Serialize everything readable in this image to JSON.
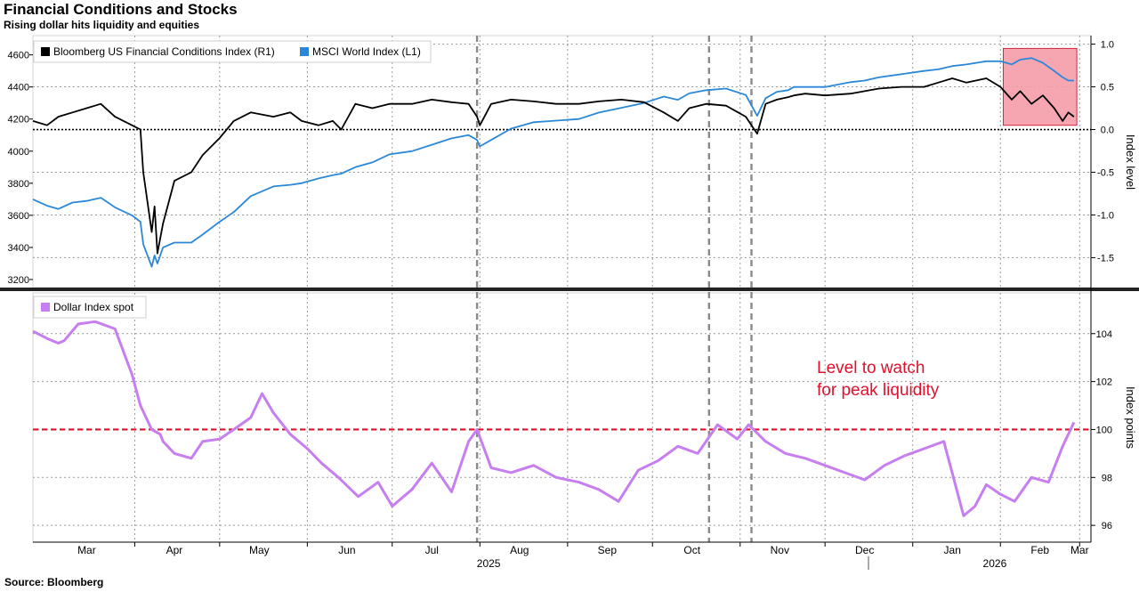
{
  "header": {
    "title": "Financial Conditions and Stocks",
    "subtitle": "Rising dollar hits liquidity and equities"
  },
  "footer": {
    "source": "Source: Bloomberg"
  },
  "colors": {
    "fci": "#000000",
    "msci": "#2b88d8",
    "dxy": "#c77ef0",
    "level": "#e0112b",
    "box_fill": "#f49ca8",
    "box_stroke": "#d0263c",
    "grid": "#9a9a9a",
    "vline": "#8a8a8a"
  },
  "x_axis": {
    "months": [
      "Mar",
      "Apr",
      "May",
      "Jun",
      "Jul",
      "Aug",
      "Sep",
      "Oct",
      "Nov",
      "Dec",
      "Jan",
      "Feb",
      "Mar"
    ],
    "years": [
      "2025",
      "2026"
    ]
  },
  "chart_data": [
    {
      "type": "line",
      "panel": "top",
      "legend_position": "top-left",
      "left_axis": {
        "range": [
          3150,
          4720
        ],
        "ticks": [
          3200,
          3400,
          3600,
          3800,
          4000,
          4200,
          4400,
          4600
        ]
      },
      "right_axis": {
        "label": "Index level",
        "range": [
          -1.85,
          1.1
        ],
        "ticks": [
          "1.0",
          "0.5",
          "0.0",
          "-0.5",
          "-1.0",
          "-1.5"
        ],
        "tick_values": [
          1.0,
          0.5,
          0.0,
          -0.5,
          -1.0,
          -1.5
        ]
      },
      "zero_line": 0.0,
      "grid": true,
      "series": [
        {
          "name": "Bloomberg US Financial Conditions Index (R1)",
          "axis": "right",
          "x": [
            "2025-02-24",
            "2025-03-01",
            "2025-03-05",
            "2025-03-10",
            "2025-03-15",
            "2025-03-20",
            "2025-03-25",
            "2025-03-31",
            "2025-04-03",
            "2025-04-04",
            "2025-04-07",
            "2025-04-08",
            "2025-04-09",
            "2025-04-11",
            "2025-04-15",
            "2025-04-21",
            "2025-04-25",
            "2025-05-01",
            "2025-05-06",
            "2025-05-12",
            "2025-05-20",
            "2025-05-26",
            "2025-05-30",
            "2025-06-05",
            "2025-06-10",
            "2025-06-13",
            "2025-06-18",
            "2025-06-24",
            "2025-06-30",
            "2025-07-08",
            "2025-07-15",
            "2025-07-22",
            "2025-07-28",
            "2025-07-31",
            "2025-08-01",
            "2025-08-05",
            "2025-08-12",
            "2025-08-20",
            "2025-08-28",
            "2025-09-05",
            "2025-09-12",
            "2025-09-20",
            "2025-09-28",
            "2025-10-05",
            "2025-10-10",
            "2025-10-14",
            "2025-10-20",
            "2025-10-27",
            "2025-11-03",
            "2025-11-07",
            "2025-11-10",
            "2025-11-14",
            "2025-11-18",
            "2025-11-20",
            "2025-11-24",
            "2025-12-01",
            "2025-12-10",
            "2025-12-15",
            "2025-12-20",
            "2025-12-28",
            "2026-01-05",
            "2026-01-10",
            "2026-01-15",
            "2026-01-20",
            "2026-01-27",
            "2026-02-01",
            "2026-02-05",
            "2026-02-08",
            "2026-02-12",
            "2026-02-16",
            "2026-02-20",
            "2026-02-23",
            "2026-02-25",
            "2026-02-27"
          ],
          "values": [
            0.1,
            0.05,
            0.15,
            0.2,
            0.25,
            0.3,
            0.15,
            0.05,
            0.0,
            -0.5,
            -1.2,
            -0.9,
            -1.45,
            -1.1,
            -0.6,
            -0.5,
            -0.3,
            -0.1,
            0.1,
            0.2,
            0.15,
            0.2,
            0.1,
            0.05,
            0.1,
            0.0,
            0.3,
            0.25,
            0.3,
            0.3,
            0.35,
            0.32,
            0.3,
            0.15,
            0.05,
            0.3,
            0.35,
            0.33,
            0.3,
            0.3,
            0.33,
            0.35,
            0.32,
            0.2,
            0.1,
            0.25,
            0.3,
            0.28,
            0.15,
            -0.05,
            0.3,
            0.35,
            0.38,
            0.4,
            0.42,
            0.4,
            0.42,
            0.45,
            0.48,
            0.5,
            0.5,
            0.55,
            0.6,
            0.55,
            0.6,
            0.5,
            0.35,
            0.45,
            0.3,
            0.4,
            0.25,
            0.1,
            0.2,
            0.15
          ]
        },
        {
          "name": "MSCI World Index (L1)",
          "axis": "left",
          "x": [
            "2025-02-24",
            "2025-03-01",
            "2025-03-05",
            "2025-03-10",
            "2025-03-15",
            "2025-03-20",
            "2025-03-25",
            "2025-03-31",
            "2025-04-03",
            "2025-04-04",
            "2025-04-07",
            "2025-04-08",
            "2025-04-09",
            "2025-04-11",
            "2025-04-15",
            "2025-04-21",
            "2025-04-25",
            "2025-05-01",
            "2025-05-06",
            "2025-05-12",
            "2025-05-20",
            "2025-05-26",
            "2025-05-30",
            "2025-06-05",
            "2025-06-10",
            "2025-06-13",
            "2025-06-18",
            "2025-06-24",
            "2025-06-30",
            "2025-07-08",
            "2025-07-15",
            "2025-07-22",
            "2025-07-28",
            "2025-07-31",
            "2025-08-01",
            "2025-08-05",
            "2025-08-12",
            "2025-08-20",
            "2025-08-28",
            "2025-09-05",
            "2025-09-12",
            "2025-09-20",
            "2025-09-28",
            "2025-10-05",
            "2025-10-10",
            "2025-10-14",
            "2025-10-20",
            "2025-10-27",
            "2025-11-03",
            "2025-11-07",
            "2025-11-10",
            "2025-11-14",
            "2025-11-18",
            "2025-11-20",
            "2025-11-24",
            "2025-12-01",
            "2025-12-10",
            "2025-12-15",
            "2025-12-20",
            "2025-12-28",
            "2026-01-05",
            "2026-01-10",
            "2026-01-15",
            "2026-01-20",
            "2026-01-27",
            "2026-02-01",
            "2026-02-05",
            "2026-02-08",
            "2026-02-12",
            "2026-02-16",
            "2026-02-20",
            "2026-02-23",
            "2026-02-25",
            "2026-02-27"
          ],
          "values": [
            3700,
            3660,
            3640,
            3680,
            3690,
            3710,
            3650,
            3600,
            3560,
            3420,
            3280,
            3350,
            3300,
            3400,
            3430,
            3430,
            3480,
            3560,
            3620,
            3720,
            3780,
            3790,
            3800,
            3830,
            3850,
            3860,
            3900,
            3930,
            3980,
            4000,
            4040,
            4080,
            4100,
            4070,
            4030,
            4070,
            4140,
            4180,
            4190,
            4200,
            4240,
            4270,
            4300,
            4340,
            4320,
            4360,
            4380,
            4390,
            4350,
            4220,
            4330,
            4370,
            4380,
            4400,
            4400,
            4400,
            4430,
            4440,
            4460,
            4480,
            4500,
            4510,
            4530,
            4540,
            4560,
            4560,
            4540,
            4570,
            4580,
            4550,
            4500,
            4460,
            4440,
            4440
          ]
        }
      ]
    },
    {
      "type": "line",
      "panel": "bottom",
      "legend_position": "top-left",
      "right_axis": {
        "label": "Index points",
        "range": [
          95.3,
          105.7
        ],
        "ticks": [
          96,
          98,
          100,
          102,
          104
        ]
      },
      "reference_line": {
        "value": 100,
        "label_lines": [
          "Level to watch",
          "for peak liquidity"
        ]
      },
      "grid": true,
      "series": [
        {
          "name": "Dollar Index spot",
          "x": [
            "2025-02-24",
            "2025-03-01",
            "2025-03-05",
            "2025-03-07",
            "2025-03-12",
            "2025-03-18",
            "2025-03-25",
            "2025-03-31",
            "2025-04-03",
            "2025-04-07",
            "2025-04-10",
            "2025-04-11",
            "2025-04-15",
            "2025-04-21",
            "2025-04-25",
            "2025-05-01",
            "2025-05-06",
            "2025-05-12",
            "2025-05-16",
            "2025-05-20",
            "2025-05-26",
            "2025-06-01",
            "2025-06-06",
            "2025-06-12",
            "2025-06-19",
            "2025-06-26",
            "2025-07-01",
            "2025-07-08",
            "2025-07-15",
            "2025-07-22",
            "2025-07-28",
            "2025-07-31",
            "2025-08-05",
            "2025-08-12",
            "2025-08-20",
            "2025-08-28",
            "2025-09-05",
            "2025-09-12",
            "2025-09-19",
            "2025-09-26",
            "2025-10-03",
            "2025-10-10",
            "2025-10-17",
            "2025-10-24",
            "2025-10-31",
            "2025-11-04",
            "2025-11-10",
            "2025-11-17",
            "2025-11-24",
            "2025-12-01",
            "2025-12-08",
            "2025-12-15",
            "2025-12-22",
            "2025-12-29",
            "2026-01-05",
            "2026-01-12",
            "2026-01-19",
            "2026-01-23",
            "2026-01-27",
            "2026-02-01",
            "2026-02-06",
            "2026-02-12",
            "2026-02-18",
            "2026-02-23",
            "2026-02-27"
          ],
          "values": [
            104.1,
            103.8,
            103.6,
            103.7,
            104.4,
            104.5,
            104.2,
            102.3,
            101.0,
            100.0,
            99.8,
            99.5,
            99.0,
            98.8,
            99.5,
            99.6,
            100.0,
            100.5,
            101.5,
            100.7,
            99.8,
            99.2,
            98.6,
            98.0,
            97.2,
            97.8,
            96.8,
            97.5,
            98.6,
            97.4,
            99.5,
            100.0,
            98.4,
            98.2,
            98.5,
            98.0,
            97.8,
            97.5,
            97.0,
            98.3,
            98.7,
            99.3,
            99.0,
            100.2,
            99.6,
            100.2,
            99.5,
            99.0,
            98.8,
            98.5,
            98.2,
            97.9,
            98.5,
            98.9,
            99.2,
            99.5,
            96.4,
            96.8,
            97.7,
            97.3,
            97.0,
            98.0,
            97.8,
            99.3,
            100.3
          ]
        }
      ]
    }
  ],
  "event_lines": [
    "2025-07-31",
    "2025-10-21",
    "2025-11-05"
  ],
  "highlight_box": {
    "x_start": "2026-02-02",
    "x_end": "2026-02-28",
    "y_range_right": [
      0.05,
      0.95
    ]
  }
}
